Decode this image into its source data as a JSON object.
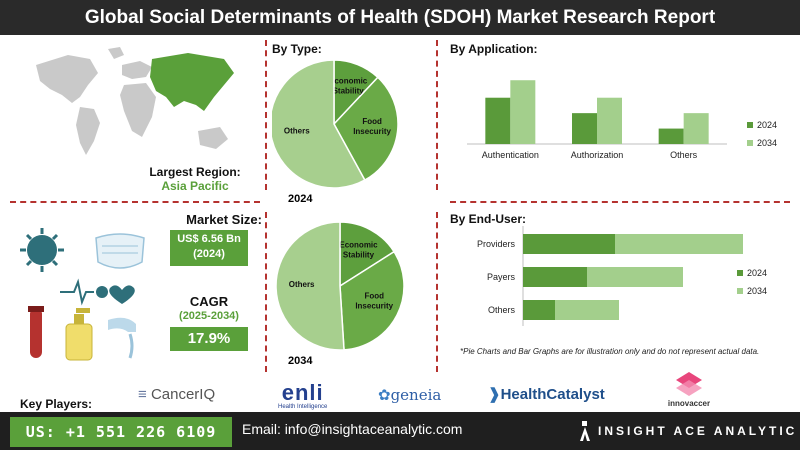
{
  "title": "Global Social Determinants of Health (SDOH) Market Research Report",
  "region": {
    "label": "Largest Region:",
    "value": "Asia Pacific"
  },
  "market": {
    "size_label": "Market Size:",
    "size_value": "US$ 6.56 Bn",
    "size_year": "(2024)",
    "cagr_label": "CAGR",
    "cagr_period": "(2025-2034)",
    "cagr_value": "17.9%"
  },
  "by_type": {
    "heading": "By Type:"
  },
  "by_application": {
    "heading": "By Application:"
  },
  "by_end_user": {
    "heading": "By End-User:"
  },
  "note": "*Pie Charts and Bar Graphs are for illustration only and do not represent actual data.",
  "key_players": {
    "label": "Key Players:",
    "names": [
      "CancerIQ",
      "enli",
      "Health Intelligence",
      "geneia",
      "HealthCatalyst",
      "innovaccer"
    ]
  },
  "footer": {
    "phone": "US: +1 551 226 6109",
    "email": "Email: info@insightaceanalytic.com",
    "brand": "INSIGHT ACE ANALYTIC"
  },
  "colors": {
    "dark_green": "#5a9a3a",
    "light_green": "#a3cf8c",
    "accent_red": "#b5322f",
    "title_bg": "#2a2a2a"
  },
  "chart_data": [
    {
      "type": "pie",
      "year_label": "2024",
      "labels": [
        "Economic Stability",
        "Food Insecurity",
        "Others"
      ],
      "values": [
        12,
        30,
        58
      ],
      "colors": [
        "#5d9f3d",
        "#6aaa47",
        "#a7cf8e"
      ]
    },
    {
      "type": "pie",
      "year_label": "2034",
      "labels": [
        "Economic Stability",
        "Food Insecurity",
        "Others"
      ],
      "values": [
        16,
        33,
        51
      ],
      "colors": [
        "#5d9f3d",
        "#6aaa47",
        "#a7cf8e"
      ]
    },
    {
      "type": "bar",
      "title": "By Application",
      "categories": [
        "Authentication",
        "Authorization",
        "Others"
      ],
      "series": [
        {
          "name": "2024",
          "values": [
            45,
            30,
            15
          ]
        },
        {
          "name": "2034",
          "values": [
            62,
            45,
            30
          ]
        }
      ],
      "ylim": [
        0,
        70
      ],
      "legend": "right"
    },
    {
      "type": "bar",
      "orientation": "horizontal",
      "title": "By End-User",
      "categories": [
        "Providers",
        "Payers",
        "Others"
      ],
      "series": [
        {
          "name": "2024",
          "values": [
            23,
            16,
            8
          ]
        },
        {
          "name": "2034",
          "values": [
            32,
            24,
            16
          ]
        }
      ],
      "xlim": [
        0,
        60
      ],
      "legend": "right"
    }
  ]
}
